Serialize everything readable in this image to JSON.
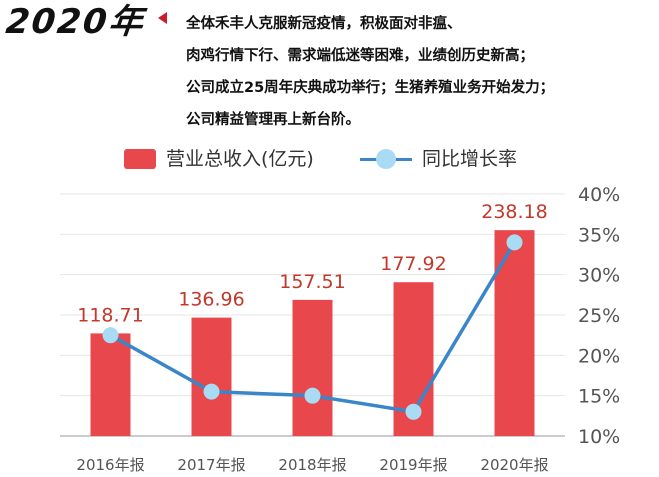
{
  "header": {
    "year": "2020年",
    "lines": [
      "全体禾丰人克服新冠疫情，积极面对非瘟、",
      "肉鸡行情下行、需求端低迷等困难，业绩创历史新高；",
      "公司成立25周年庆典成功举行；生猪养殖业务开始发力；",
      "公司精益管理再上新台阶。"
    ]
  },
  "colors": {
    "bar": "#e8474c",
    "line": "#3a86c8",
    "marker": "#a9dbf5",
    "label": "#c0392b",
    "accent": "#c8202a"
  },
  "chart_data": {
    "type": "bar",
    "categories": [
      "2016年报",
      "2017年报",
      "2018年报",
      "2019年报",
      "2020年报"
    ],
    "series": [
      {
        "name": "营业总收入(亿元)",
        "type": "bar",
        "values": [
          118.71,
          136.96,
          157.51,
          177.92,
          238.18
        ]
      },
      {
        "name": "同比增长率",
        "type": "line",
        "axis": "right",
        "values": [
          22.5,
          15.5,
          15.0,
          13.0,
          34.0
        ]
      }
    ],
    "value_labels": [
      "118.71",
      "136.96",
      "157.51",
      "177.92",
      "238.18"
    ],
    "y_right_ticks": [
      "10%",
      "15%",
      "20%",
      "25%",
      "30%",
      "35%",
      "40%"
    ],
    "y_right_range": [
      10,
      40
    ],
    "y_left_range": [
      0,
      280
    ],
    "grid": true,
    "legend_position": "top"
  }
}
